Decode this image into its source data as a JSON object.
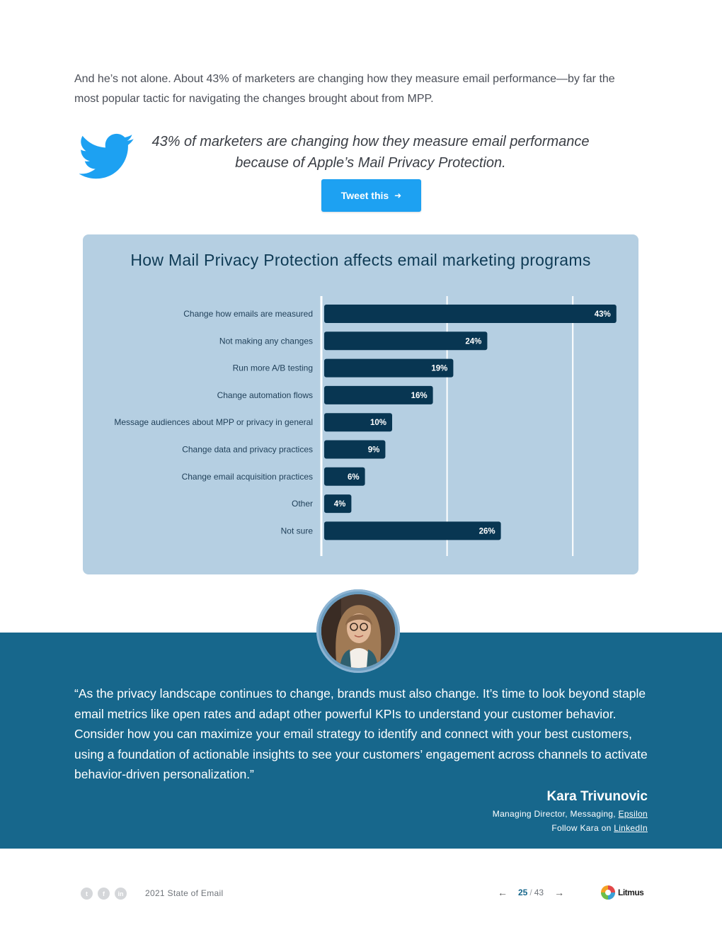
{
  "intro": "And he’s not alone. About 43% of marketers are changing how they measure email performance—by far the most popular tactic for navigating the changes brought about from MPP.",
  "tweet": {
    "quote": "43% of marketers are changing how they measure email performance because of Apple’s Mail Privacy Protection.",
    "button_label": "Tweet this",
    "button_icon": "arrow-right-icon",
    "icon": "twitter-bird-icon",
    "colors": {
      "twitter_blue": "#1da1f2"
    }
  },
  "chart_data": {
    "type": "bar",
    "orientation": "horizontal",
    "title": "How Mail Privacy Protection affects email marketing programs",
    "categories": [
      "Change how emails are measured",
      "Not making any changes",
      "Run more A/B testing",
      "Change automation flows",
      "Message audiences about MPP or privacy in general",
      "Change data and privacy practices",
      "Change email acquisition practices",
      "Other",
      "Not sure"
    ],
    "values": [
      43,
      24,
      19,
      16,
      10,
      9,
      6,
      4,
      26
    ],
    "value_labels": [
      "43%",
      "24%",
      "19%",
      "16%",
      "10%",
      "9%",
      "6%",
      "4%",
      "26%"
    ],
    "unit": "%",
    "xlim": [
      0,
      50
    ],
    "gridlines": [
      0,
      18.5,
      37
    ],
    "grid": true,
    "colors": {
      "background": "#b5cfe2",
      "bar": "#083652",
      "grid": "#ffffff"
    }
  },
  "quote": {
    "text": "“As the privacy landscape continues to change, brands must also change. It’s time to look beyond staple email metrics like open rates and adapt other powerful KPIs to understand your customer behavior. Consider how you can maximize your email strategy to identify and connect with your best customers, using a foundation of actionable insights to see your customers’ engagement across channels to activate behavior-driven personalization.”",
    "author": "Kara Trivunovic",
    "role_prefix": "Managing Director, Messaging, ",
    "company_link": "Epsilon",
    "follow_prefix": "Follow Kara on ",
    "follow_link": "LinkedIn",
    "avatar_icon": "author-photo",
    "colors": {
      "band": "#17678c"
    }
  },
  "footer": {
    "social_icons": [
      "twitter-icon",
      "facebook-icon",
      "linkedin-icon"
    ],
    "social_glyphs": [
      "t",
      "f",
      "in"
    ],
    "doc_title": "2021 State of Email",
    "current_page": "25",
    "separator": "/",
    "total_pages": "43",
    "prev_icon": "arrow-left-icon",
    "next_icon": "arrow-right-icon",
    "logo_text": "Litmus"
  }
}
